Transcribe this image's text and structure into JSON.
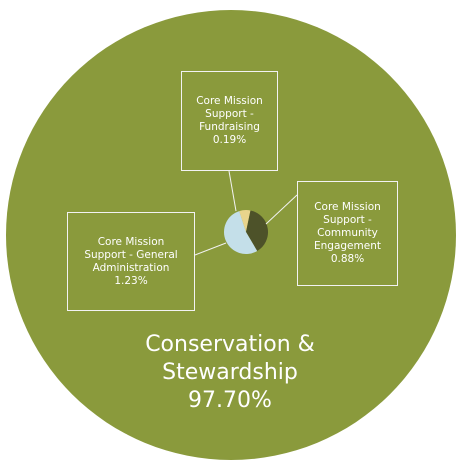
{
  "chart_data": {
    "type": "pie",
    "slices": [
      {
        "label": "Core Mission Support - Fundraising",
        "value": 0.19,
        "display": "0.19%",
        "color": "#e8d48c"
      },
      {
        "label": "Core Mission Support - Community Engagement",
        "value": 0.88,
        "display": "0.88%",
        "color": "#4d5229"
      },
      {
        "label": "Core Mission Support - General Administration",
        "value": 1.23,
        "display": "1.23%",
        "color": "#c4dfe9"
      },
      {
        "label": "Conservation & Stewardship",
        "value": 97.7,
        "display": "97.70%",
        "color": "#8a9a3c"
      }
    ]
  },
  "labels": {
    "fundraising": [
      "Core Mission",
      "Support -",
      "Fundraising",
      "0.19%"
    ],
    "community": [
      "Core Mission",
      "Support -",
      "Community",
      "Engagement",
      "0.88%"
    ],
    "admin": [
      "Core Mission",
      "Support - General",
      "Administration",
      "1.23%"
    ],
    "conservation": [
      "Conservation &",
      "Stewardship",
      "97.70%"
    ]
  },
  "colors": {
    "background": "#ffffff",
    "callout_border": "#f2f2f2",
    "label_text": "#ffffff"
  }
}
